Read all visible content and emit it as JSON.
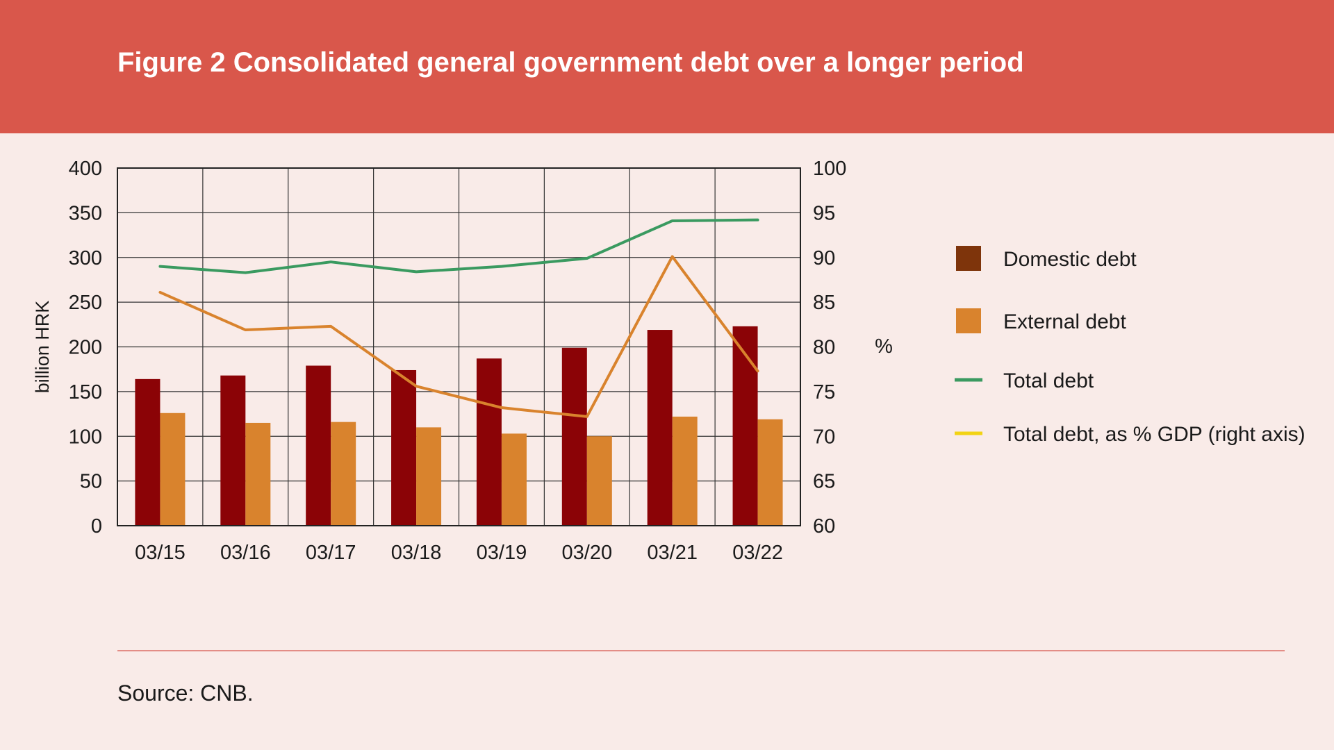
{
  "header": {
    "title": "Figure 2 Consolidated general government debt over a longer period"
  },
  "footer": {
    "source": "Source: CNB."
  },
  "colors": {
    "header_bg": "#d9574b",
    "page_bg": "#f9ebe8",
    "domestic": "#8b0306",
    "external": "#d9832d",
    "total": "#3a9a60",
    "ratio_line": "#d9832d",
    "ratio_legend": "#f2d313",
    "domestic_legend": "#7e340b"
  },
  "chart_data": {
    "type": "bar",
    "categories": [
      "03/15",
      "03/16",
      "03/17",
      "03/18",
      "03/19",
      "03/20",
      "03/21",
      "03/22"
    ],
    "ylabel": "billion HRK",
    "ylim": [
      0,
      400
    ],
    "yticks": [
      0,
      50,
      100,
      150,
      200,
      250,
      300,
      350,
      400
    ],
    "y2label": "%",
    "y2lim": [
      60,
      100
    ],
    "y2ticks": [
      60,
      65,
      70,
      75,
      80,
      85,
      90,
      95,
      100
    ],
    "grid": true,
    "legend_position": "right",
    "series": [
      {
        "name": "Domestic debt",
        "kind": "bar",
        "axis": "left",
        "values": [
          164,
          168,
          179,
          174,
          187,
          199,
          219,
          223
        ]
      },
      {
        "name": "External debt",
        "kind": "bar",
        "axis": "left",
        "values": [
          126,
          115,
          116,
          110,
          103,
          100,
          122,
          119
        ]
      },
      {
        "name": "Total debt",
        "kind": "line",
        "axis": "left",
        "values": [
          290,
          283,
          295,
          284,
          290,
          299,
          341,
          342
        ]
      },
      {
        "name": "Total debt, as % GDP (right axis)",
        "kind": "line",
        "axis": "right",
        "values": [
          86.1,
          81.9,
          82.3,
          75.6,
          73.2,
          72.2,
          90.1,
          77.3
        ]
      }
    ]
  }
}
